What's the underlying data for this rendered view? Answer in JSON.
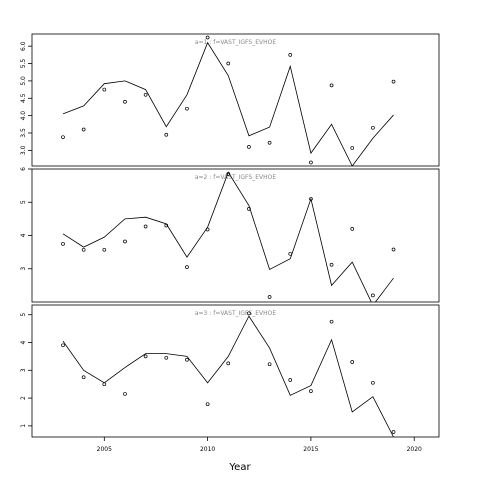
{
  "chart_data": {
    "type": "line",
    "xlabel": "Year",
    "xlim": [
      2001.5,
      2021.2
    ],
    "xticks": [
      2005,
      2010,
      2015,
      2020
    ],
    "panels": [
      {
        "title": "a=1 : f=VAST_IGFS_EVHOE",
        "ylim": [
          2.55,
          6.35
        ],
        "yticks": [
          3.0,
          3.5,
          4.0,
          4.5,
          5.0,
          5.5,
          6.0
        ],
        "ytick_labels": [
          "3.0",
          "3.5",
          "4.0",
          "4.5",
          "5.0",
          "5.5",
          "6.0"
        ],
        "years": [
          2003,
          2004,
          2005,
          2006,
          2007,
          2008,
          2009,
          2010,
          2011,
          2012,
          2013,
          2014,
          2015,
          2016,
          2017,
          2018,
          2019
        ],
        "fitted": [
          4.05,
          4.28,
          4.92,
          5.0,
          4.75,
          3.68,
          4.6,
          6.1,
          5.15,
          3.42,
          3.67,
          5.42,
          2.92,
          3.75,
          2.55,
          3.35,
          4.02
        ],
        "observed": [
          3.38,
          3.6,
          4.75,
          4.4,
          4.6,
          3.45,
          4.2,
          6.25,
          5.5,
          3.1,
          3.22,
          5.75,
          2.65,
          4.87,
          3.07,
          3.65,
          4.98
        ]
      },
      {
        "title": "a=2 : f=VAST_IGFS_EVHOE",
        "ylim": [
          2.0,
          6.0
        ],
        "yticks": [
          3,
          4,
          5,
          6
        ],
        "ytick_labels": [
          "3",
          "4",
          "5",
          "6"
        ],
        "years": [
          2003,
          2004,
          2005,
          2006,
          2007,
          2008,
          2009,
          2010,
          2011,
          2012,
          2013,
          2014,
          2015,
          2016,
          2017,
          2018,
          2019
        ],
        "fitted": [
          4.05,
          3.65,
          3.95,
          4.5,
          4.55,
          4.35,
          3.35,
          4.25,
          5.9,
          4.9,
          2.98,
          3.3,
          5.1,
          2.5,
          3.2,
          1.9,
          2.72
        ],
        "observed": [
          3.75,
          3.57,
          3.57,
          3.82,
          4.27,
          4.3,
          3.05,
          4.18,
          5.85,
          4.8,
          2.15,
          3.45,
          5.1,
          3.12,
          4.2,
          2.2,
          3.58
        ]
      },
      {
        "title": "a=3 : f=VAST_IGFS_EVHOE",
        "ylim": [
          0.6,
          5.35
        ],
        "yticks": [
          1,
          2,
          3,
          4,
          5
        ],
        "ytick_labels": [
          "1",
          "2",
          "3",
          "4",
          "5"
        ],
        "years": [
          2003,
          2004,
          2005,
          2006,
          2007,
          2008,
          2009,
          2010,
          2011,
          2012,
          2013,
          2014,
          2015,
          2016,
          2017,
          2018,
          2019
        ],
        "fitted": [
          4.05,
          3.0,
          2.55,
          3.1,
          3.6,
          3.6,
          3.5,
          2.55,
          3.5,
          4.95,
          3.8,
          2.1,
          2.45,
          4.1,
          1.5,
          2.05,
          0.6
        ],
        "observed": [
          3.9,
          2.75,
          2.5,
          2.15,
          3.5,
          3.45,
          3.38,
          1.78,
          3.25,
          5.05,
          3.22,
          2.65,
          2.25,
          4.75,
          3.3,
          2.55,
          0.78
        ]
      }
    ]
  }
}
